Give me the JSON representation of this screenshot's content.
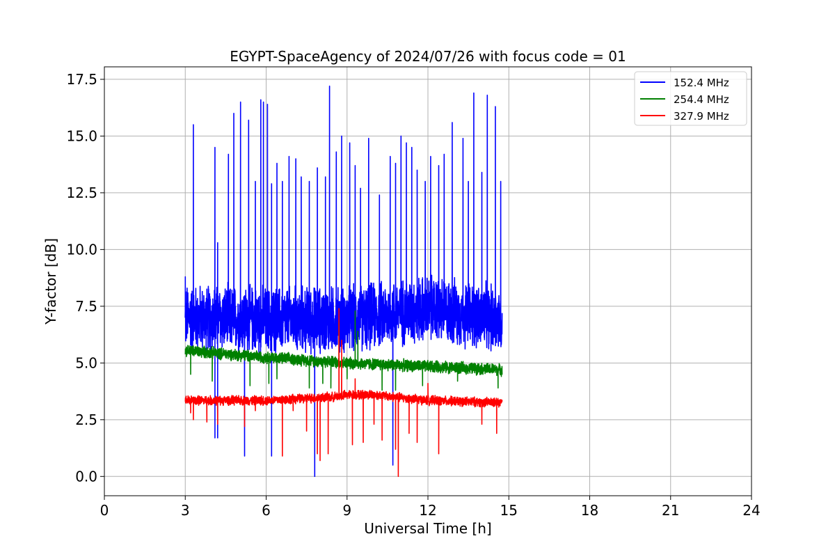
{
  "chart_data": {
    "type": "line",
    "title": "EGYPT-SpaceAgency of 2024/07/26 with focus code = 01",
    "xlabel": "Universal Time [h]",
    "ylabel": "Y-factor [dB]",
    "xlim": [
      0,
      24
    ],
    "ylim": [
      -0.85,
      18.05
    ],
    "xticks": [
      "0",
      "3",
      "6",
      "9",
      "12",
      "15",
      "18",
      "21",
      "24"
    ],
    "yticks": [
      "0.0",
      "2.5",
      "5.0",
      "7.5",
      "10.0",
      "12.5",
      "15.0",
      "17.5"
    ],
    "grid": true,
    "legend_position": "top-right",
    "series": [
      {
        "name": "152.4 MHz",
        "color": "#0000ff",
        "baseline": [
          [
            3.0,
            7.0
          ],
          [
            6.0,
            6.9
          ],
          [
            9.0,
            6.9
          ],
          [
            12.0,
            7.4
          ],
          [
            14.75,
            6.9
          ]
        ],
        "band": 1.4,
        "spikes": [
          [
            3.0,
            8.8
          ],
          [
            3.3,
            15.5
          ],
          [
            4.1,
            14.5
          ],
          [
            4.2,
            10.3
          ],
          [
            4.6,
            14.2
          ],
          [
            4.8,
            16.0
          ],
          [
            5.05,
            16.5
          ],
          [
            5.35,
            15.7
          ],
          [
            5.6,
            13.0
          ],
          [
            5.8,
            16.6
          ],
          [
            5.9,
            16.5
          ],
          [
            6.05,
            16.4
          ],
          [
            6.2,
            12.9
          ],
          [
            6.4,
            13.8
          ],
          [
            6.6,
            13.0
          ],
          [
            6.85,
            14.1
          ],
          [
            7.1,
            14.0
          ],
          [
            7.3,
            13.2
          ],
          [
            7.6,
            13.0
          ],
          [
            7.9,
            13.6
          ],
          [
            8.2,
            13.2
          ],
          [
            8.35,
            17.2
          ],
          [
            8.6,
            14.3
          ],
          [
            8.8,
            15.0
          ],
          [
            9.1,
            14.7
          ],
          [
            9.3,
            13.7
          ],
          [
            9.5,
            12.7
          ],
          [
            9.8,
            14.9
          ],
          [
            10.2,
            12.4
          ],
          [
            10.6,
            14.1
          ],
          [
            10.8,
            13.8
          ],
          [
            11.0,
            15.0
          ],
          [
            11.2,
            14.7
          ],
          [
            11.4,
            14.5
          ],
          [
            11.6,
            13.5
          ],
          [
            11.9,
            13.0
          ],
          [
            12.1,
            14.1
          ],
          [
            12.4,
            13.7
          ],
          [
            12.6,
            14.2
          ],
          [
            12.9,
            15.6
          ],
          [
            13.3,
            14.9
          ],
          [
            13.5,
            13.0
          ],
          [
            13.7,
            16.9
          ],
          [
            14.0,
            13.4
          ],
          [
            14.2,
            16.8
          ],
          [
            14.5,
            16.3
          ],
          [
            14.7,
            13.0
          ]
        ],
        "dips": [
          [
            4.1,
            1.7
          ],
          [
            4.2,
            1.7
          ],
          [
            5.2,
            0.9
          ],
          [
            6.2,
            0.9
          ],
          [
            7.8,
            0.0
          ],
          [
            10.7,
            0.5
          ]
        ]
      },
      {
        "name": "254.4 MHz",
        "color": "#008000",
        "baseline": [
          [
            3.0,
            5.55
          ],
          [
            6.0,
            5.25
          ],
          [
            9.0,
            5.0
          ],
          [
            12.0,
            4.85
          ],
          [
            14.75,
            4.7
          ]
        ],
        "band": 0.25,
        "spikes": [
          [
            8.7,
            6.8
          ],
          [
            9.3,
            7.3
          ],
          [
            9.4,
            6.4
          ]
        ],
        "dips": [
          [
            3.2,
            4.5
          ],
          [
            4.0,
            4.2
          ],
          [
            5.4,
            4.0
          ],
          [
            6.1,
            4.1
          ],
          [
            6.4,
            4.3
          ],
          [
            7.6,
            3.9
          ],
          [
            8.1,
            4.1
          ],
          [
            8.4,
            3.9
          ],
          [
            9.0,
            4.3
          ],
          [
            10.3,
            3.8
          ],
          [
            10.8,
            3.8
          ],
          [
            11.8,
            4.0
          ],
          [
            13.1,
            4.2
          ],
          [
            14.6,
            3.9
          ]
        ]
      },
      {
        "name": "327.9 MHz",
        "color": "#ff0000",
        "baseline": [
          [
            3.0,
            3.35
          ],
          [
            6.0,
            3.35
          ],
          [
            8.5,
            3.5
          ],
          [
            9.0,
            3.6
          ],
          [
            10.0,
            3.6
          ],
          [
            12.0,
            3.35
          ],
          [
            14.75,
            3.25
          ]
        ],
        "band": 0.2,
        "spikes": [
          [
            8.7,
            7.4
          ],
          [
            8.8,
            6.0
          ],
          [
            9.3,
            4.3
          ],
          [
            12.0,
            4.1
          ]
        ],
        "dips": [
          [
            3.2,
            2.8
          ],
          [
            3.3,
            2.5
          ],
          [
            3.8,
            2.4
          ],
          [
            4.2,
            2.3
          ],
          [
            5.2,
            2.2
          ],
          [
            5.6,
            2.9
          ],
          [
            6.6,
            0.9
          ],
          [
            7.0,
            2.9
          ],
          [
            7.5,
            2.0
          ],
          [
            7.9,
            1.0
          ],
          [
            8.0,
            0.7
          ],
          [
            8.3,
            1.0
          ],
          [
            9.2,
            1.4
          ],
          [
            9.6,
            1.5
          ],
          [
            10.0,
            2.3
          ],
          [
            10.3,
            1.6
          ],
          [
            10.8,
            1.2
          ],
          [
            10.9,
            0.0
          ],
          [
            11.3,
            1.9
          ],
          [
            11.6,
            1.5
          ],
          [
            12.4,
            1.0
          ],
          [
            14.0,
            2.3
          ],
          [
            14.55,
            1.9
          ]
        ]
      }
    ]
  }
}
